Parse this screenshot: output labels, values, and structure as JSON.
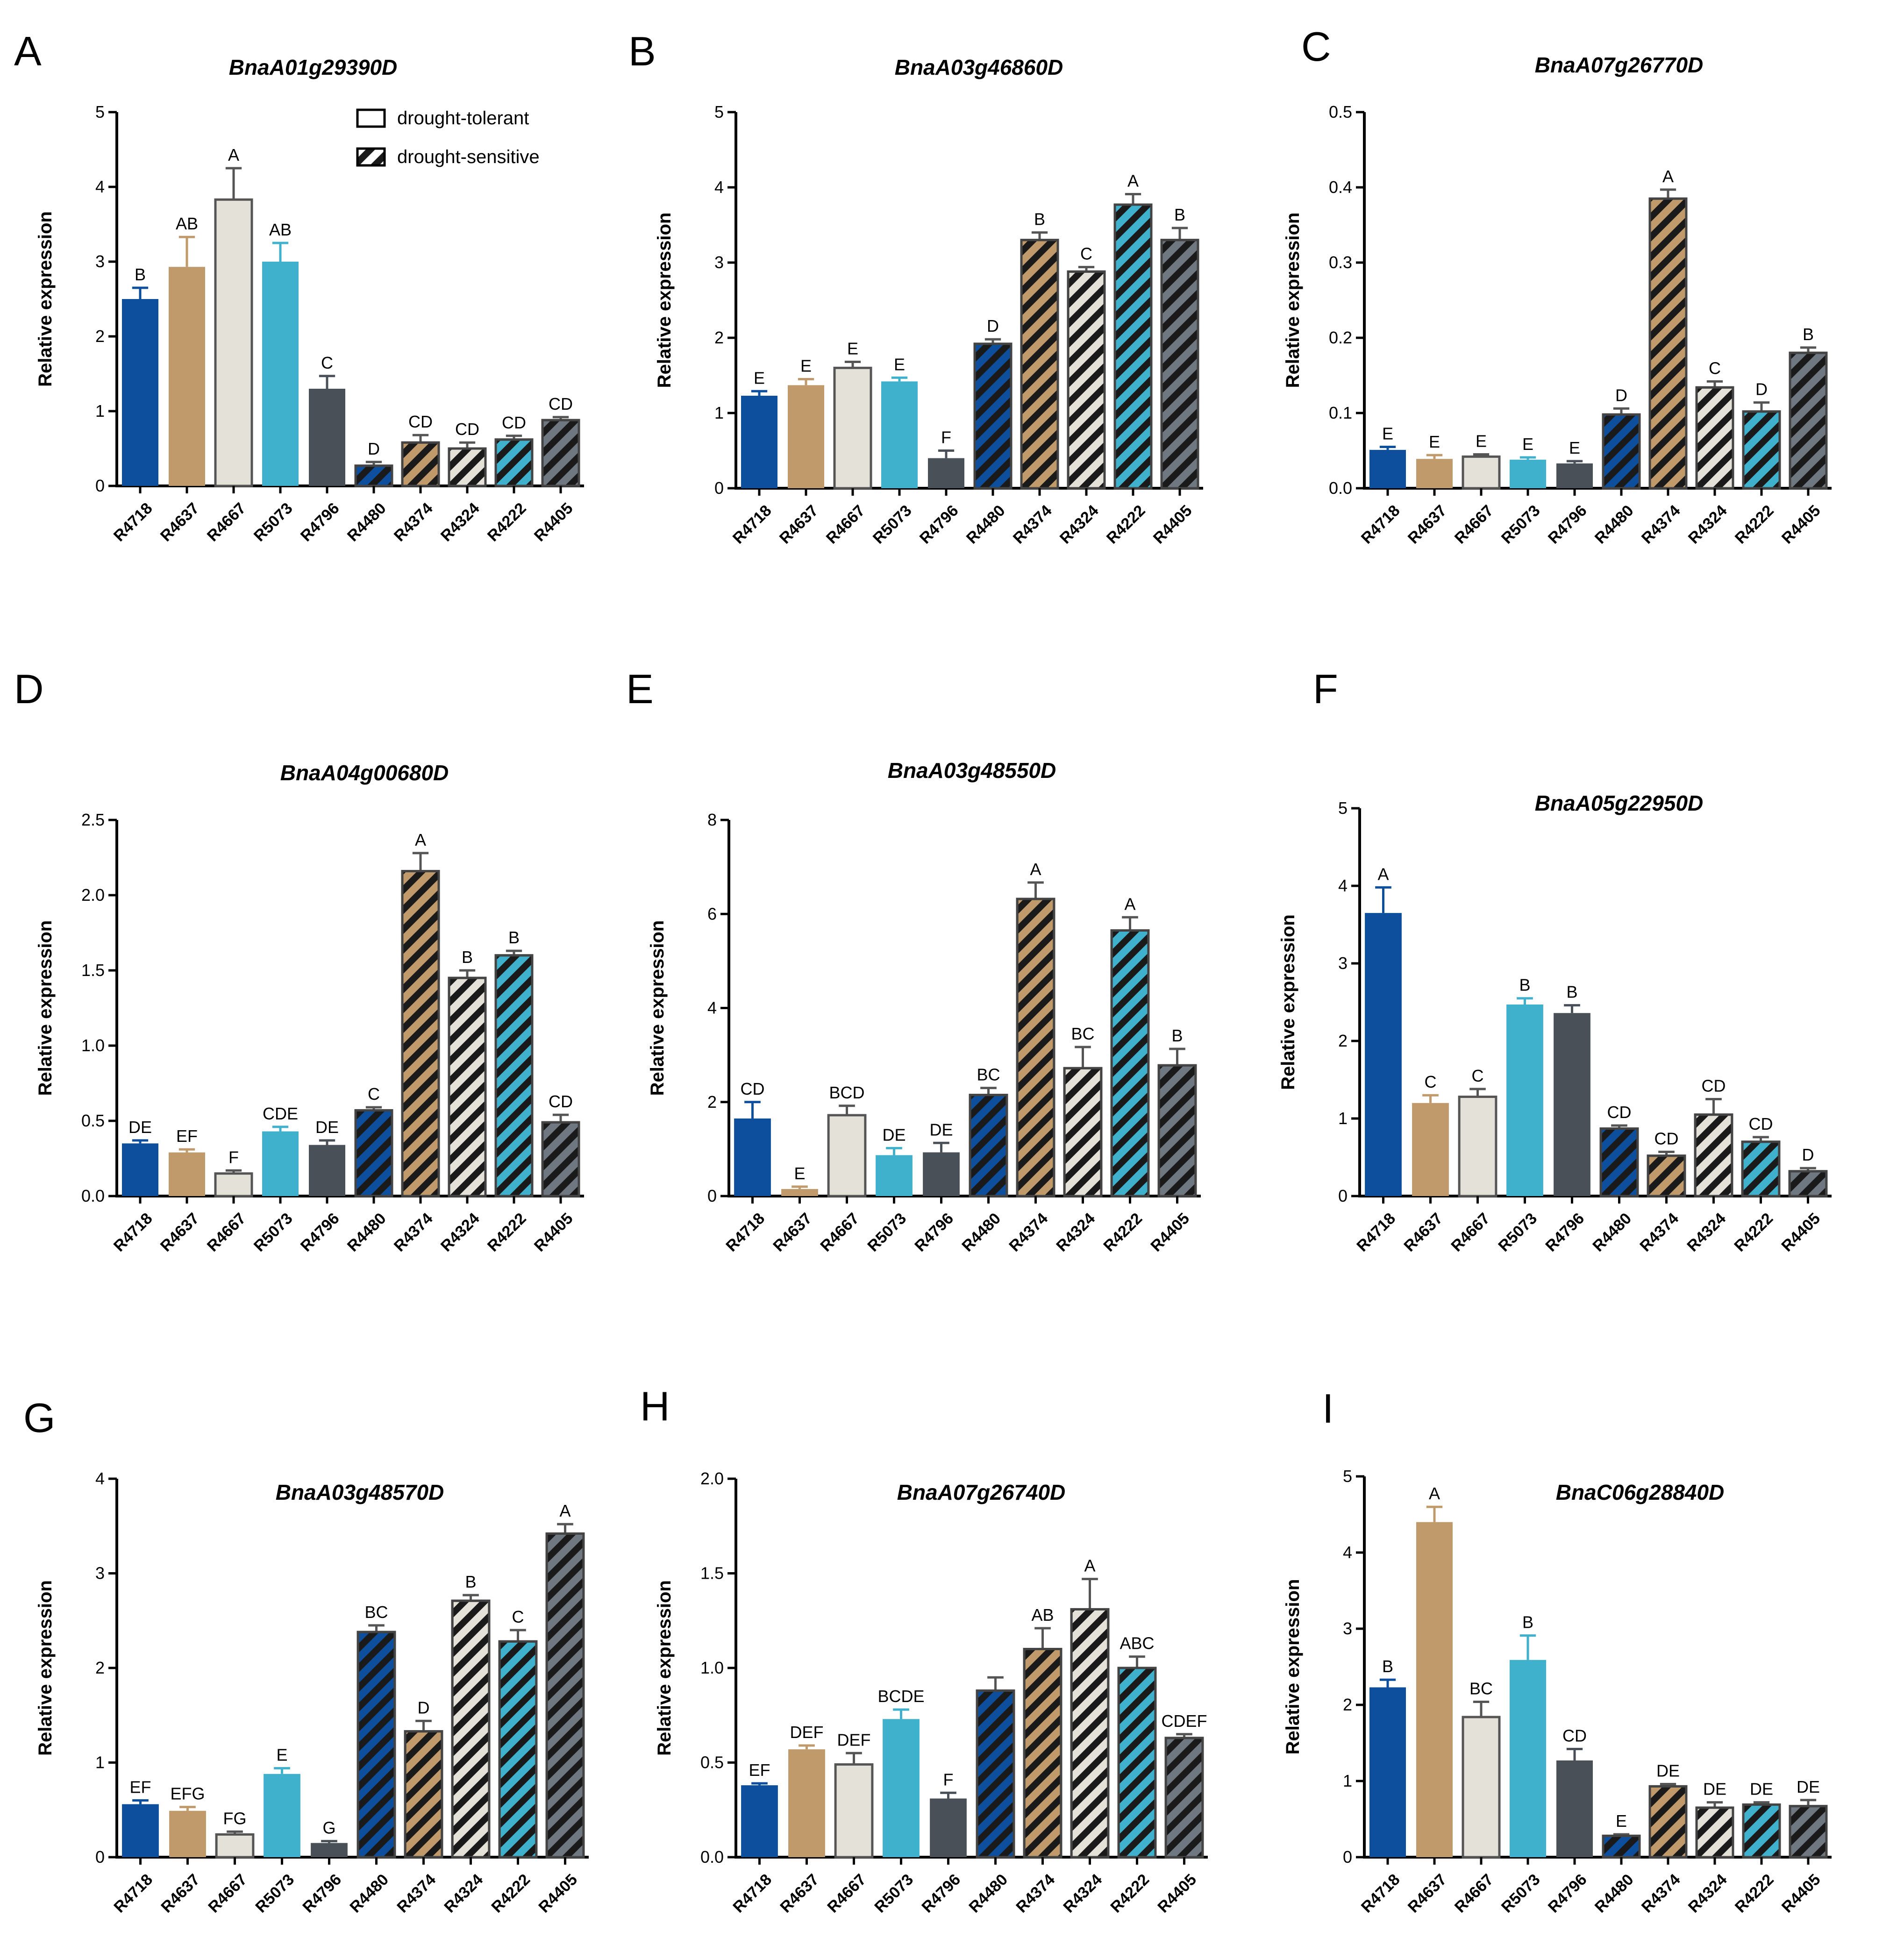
{
  "legend": {
    "tolerant_label": "drought-tolerant",
    "sensitive_label": "drought-sensitive"
  },
  "colors": {
    "R4718": "#0d4f9c",
    "R4637": "#c09a6b",
    "R4667": "#e4e1d9",
    "R5073": "#3fb1cc",
    "R4796": "#4a5058",
    "R4480": "#0d4f9c",
    "R4374": "#c09a6b",
    "R4324": "#e4e1d9",
    "R4222": "#3fb1cc",
    "R4405": "#6f7780",
    "hatch_line": "#1a1a1a",
    "axis": "#000000"
  },
  "chart_data": [
    {
      "panel": "A",
      "type": "bar",
      "title": "BnaA01g29390D",
      "ylabel": "Relative expression",
      "categories": [
        "R4718",
        "R4637",
        "R4667",
        "R5073",
        "R4796",
        "R4480",
        "R4374",
        "R4324",
        "R4222",
        "R4405"
      ],
      "tolerant": [
        "R4718",
        "R4637",
        "R4667",
        "R5073",
        "R4796"
      ],
      "sensitive": [
        "R4480",
        "R4374",
        "R4324",
        "R4222",
        "R4405"
      ],
      "ylim": [
        0,
        5
      ],
      "yticks": [
        "0",
        "1",
        "2",
        "3",
        "4",
        "5"
      ],
      "ytick_values": [
        0,
        1,
        2,
        3,
        4,
        5
      ],
      "values": [
        2.5,
        2.93,
        3.83,
        3.0,
        1.3,
        0.27,
        0.58,
        0.5,
        0.62,
        0.88
      ],
      "errors": [
        0.15,
        0.4,
        0.42,
        0.25,
        0.17,
        0.05,
        0.1,
        0.08,
        0.05,
        0.04
      ],
      "letters": [
        "B",
        "AB",
        "A",
        "AB",
        "C",
        "D",
        "CD",
        "CD",
        "CD",
        "CD"
      ],
      "show_legend": true
    },
    {
      "panel": "B",
      "type": "bar",
      "title": "BnaA03g46860D",
      "ylabel": "Relative expression",
      "categories": [
        "R4718",
        "R4637",
        "R4667",
        "R5073",
        "R4796",
        "R4480",
        "R4374",
        "R4324",
        "R4222",
        "R4405"
      ],
      "ylim": [
        0,
        5
      ],
      "yticks": [
        "0",
        "1",
        "2",
        "3",
        "4",
        "5"
      ],
      "ytick_values": [
        0,
        1,
        2,
        3,
        4,
        5
      ],
      "values": [
        1.23,
        1.37,
        1.6,
        1.42,
        0.4,
        1.92,
        3.3,
        2.88,
        3.77,
        3.3
      ],
      "errors": [
        0.06,
        0.08,
        0.08,
        0.05,
        0.1,
        0.06,
        0.1,
        0.06,
        0.14,
        0.16
      ],
      "letters": [
        "E",
        "E",
        "E",
        "E",
        "F",
        "D",
        "B",
        "C",
        "A",
        "B"
      ],
      "show_legend": false
    },
    {
      "panel": "C",
      "type": "bar",
      "title": "BnaA07g26770D",
      "ylabel": "Relative expression",
      "categories": [
        "R4718",
        "R4637",
        "R4667",
        "R5073",
        "R4796",
        "R4480",
        "R4374",
        "R4324",
        "R4222",
        "R4405"
      ],
      "ylim": [
        0,
        0.5
      ],
      "yticks": [
        "0.0",
        "0.1",
        "0.2",
        "0.3",
        "0.4",
        "0.5"
      ],
      "ytick_values": [
        0,
        0.1,
        0.2,
        0.3,
        0.4,
        0.5
      ],
      "values": [
        0.051,
        0.039,
        0.042,
        0.038,
        0.033,
        0.098,
        0.385,
        0.134,
        0.102,
        0.18
      ],
      "errors": [
        0.004,
        0.005,
        0.003,
        0.003,
        0.003,
        0.008,
        0.012,
        0.008,
        0.012,
        0.007
      ],
      "letters": [
        "E",
        "E",
        "E",
        "E",
        "E",
        "D",
        "A",
        "C",
        "D",
        "B"
      ],
      "show_legend": false
    },
    {
      "panel": "D",
      "type": "bar",
      "title": "BnaA04g00680D",
      "ylabel": "Relative expression",
      "categories": [
        "R4718",
        "R4637",
        "R4667",
        "R5073",
        "R4796",
        "R4480",
        "R4374",
        "R4324",
        "R4222",
        "R4405"
      ],
      "ylim": [
        0,
        2.5
      ],
      "yticks": [
        "0.0",
        "0.5",
        "1.0",
        "1.5",
        "2.0",
        "2.5"
      ],
      "ytick_values": [
        0,
        0.5,
        1.0,
        1.5,
        2.0,
        2.5
      ],
      "values": [
        0.35,
        0.29,
        0.15,
        0.43,
        0.34,
        0.57,
        2.16,
        1.45,
        1.6,
        0.49
      ],
      "errors": [
        0.02,
        0.02,
        0.02,
        0.03,
        0.03,
        0.02,
        0.12,
        0.05,
        0.03,
        0.05
      ],
      "letters": [
        "DE",
        "EF",
        "F",
        "CDE",
        "DE",
        "C",
        "A",
        "B",
        "B",
        "CD"
      ],
      "show_legend": false
    },
    {
      "panel": "E",
      "type": "bar",
      "title": "BnaA03g48550D",
      "ylabel": "Relative expression",
      "categories": [
        "R4718",
        "R4637",
        "R4667",
        "R5073",
        "R4796",
        "R4480",
        "R4374",
        "R4324",
        "R4222",
        "R4405"
      ],
      "ylim": [
        0,
        8
      ],
      "yticks": [
        "0",
        "2",
        "4",
        "6",
        "8"
      ],
      "ytick_values": [
        0,
        2,
        4,
        6,
        8
      ],
      "values": [
        1.65,
        0.15,
        1.72,
        0.87,
        0.93,
        2.15,
        6.32,
        2.72,
        5.65,
        2.78
      ],
      "errors": [
        0.35,
        0.05,
        0.2,
        0.15,
        0.2,
        0.15,
        0.35,
        0.45,
        0.28,
        0.35
      ],
      "letters": [
        "CD",
        "E",
        "BCD",
        "DE",
        "DE",
        "BC",
        "A",
        "BC",
        "A",
        "B"
      ],
      "show_legend": false
    },
    {
      "panel": "F",
      "type": "bar",
      "title": "BnaA05g22950D",
      "ylabel": "Relative expression",
      "categories": [
        "R4718",
        "R4637",
        "R4667",
        "R5073",
        "R4796",
        "R4480",
        "R4374",
        "R4324",
        "R4222",
        "R4405"
      ],
      "ylim": [
        0,
        5
      ],
      "yticks": [
        "0",
        "1",
        "2",
        "3",
        "4",
        "5"
      ],
      "ytick_values": [
        0,
        1,
        2,
        3,
        4,
        5
      ],
      "values": [
        3.65,
        1.2,
        1.28,
        2.47,
        2.36,
        0.87,
        0.52,
        1.05,
        0.7,
        0.32
      ],
      "errors": [
        0.33,
        0.1,
        0.1,
        0.08,
        0.1,
        0.04,
        0.05,
        0.2,
        0.06,
        0.04
      ],
      "letters": [
        "A",
        "C",
        "C",
        "B",
        "B",
        "CD",
        "CD",
        "CD",
        "CD",
        "D"
      ],
      "show_legend": false
    },
    {
      "panel": "G",
      "type": "bar",
      "title": "BnaA03g48570D",
      "ylabel": "Relative expression",
      "categories": [
        "R4718",
        "R4637",
        "R4667",
        "R5073",
        "R4796",
        "R4480",
        "R4374",
        "R4324",
        "R4222",
        "R4405"
      ],
      "ylim": [
        0,
        4
      ],
      "yticks": [
        "0",
        "1",
        "2",
        "3",
        "4"
      ],
      "ytick_values": [
        0,
        1,
        2,
        3,
        4
      ],
      "values": [
        0.56,
        0.49,
        0.24,
        0.88,
        0.15,
        2.38,
        1.33,
        2.71,
        2.28,
        3.42
      ],
      "errors": [
        0.04,
        0.04,
        0.03,
        0.06,
        0.02,
        0.07,
        0.11,
        0.06,
        0.12,
        0.1
      ],
      "letters": [
        "EF",
        "EFG",
        "FG",
        "E",
        "G",
        "BC",
        "D",
        "B",
        "C",
        "A"
      ],
      "show_legend": false
    },
    {
      "panel": "H",
      "type": "bar",
      "title": "BnaA07g26740D",
      "ylabel": "Relative expression",
      "categories": [
        "R4718",
        "R4637",
        "R4667",
        "R5073",
        "R4796",
        "R4480",
        "R4374",
        "R4324",
        "R4222",
        "R4405"
      ],
      "ylim": [
        0,
        2.0
      ],
      "yticks": [
        "0.0",
        "0.5",
        "1.0",
        "1.5",
        "2.0"
      ],
      "ytick_values": [
        0,
        0.5,
        1.0,
        1.5,
        2.0
      ],
      "values": [
        0.38,
        0.57,
        0.49,
        0.73,
        0.31,
        0.88,
        1.1,
        1.31,
        1.0,
        0.63
      ],
      "errors": [
        0.01,
        0.02,
        0.06,
        0.05,
        0.03,
        0.07,
        0.11,
        0.16,
        0.06,
        0.02
      ],
      "letters": [
        "EF",
        "DEF",
        "DEF",
        "BCDE",
        "F",
        "",
        "AB",
        "A",
        "ABC",
        "CDEF"
      ],
      "show_legend": false
    },
    {
      "panel": "I",
      "type": "bar",
      "title": "BnaC06g28840D",
      "ylabel": "Relative expression",
      "categories": [
        "R4718",
        "R4637",
        "R4667",
        "R5073",
        "R4796",
        "R4480",
        "R4374",
        "R4324",
        "R4222",
        "R4405"
      ],
      "ylim": [
        0,
        5
      ],
      "yticks": [
        "0",
        "1",
        "2",
        "3",
        "4",
        "5"
      ],
      "ytick_values": [
        0,
        1,
        2,
        3,
        4,
        5
      ],
      "values": [
        2.23,
        4.4,
        1.84,
        2.59,
        1.27,
        0.28,
        0.93,
        0.65,
        0.69,
        0.67
      ],
      "errors": [
        0.1,
        0.2,
        0.2,
        0.32,
        0.15,
        0.02,
        0.03,
        0.07,
        0.03,
        0.08
      ],
      "letters": [
        "B",
        "A",
        "BC",
        "B",
        "CD",
        "E",
        "DE",
        "DE",
        "DE",
        "DE"
      ],
      "show_legend": false
    }
  ]
}
